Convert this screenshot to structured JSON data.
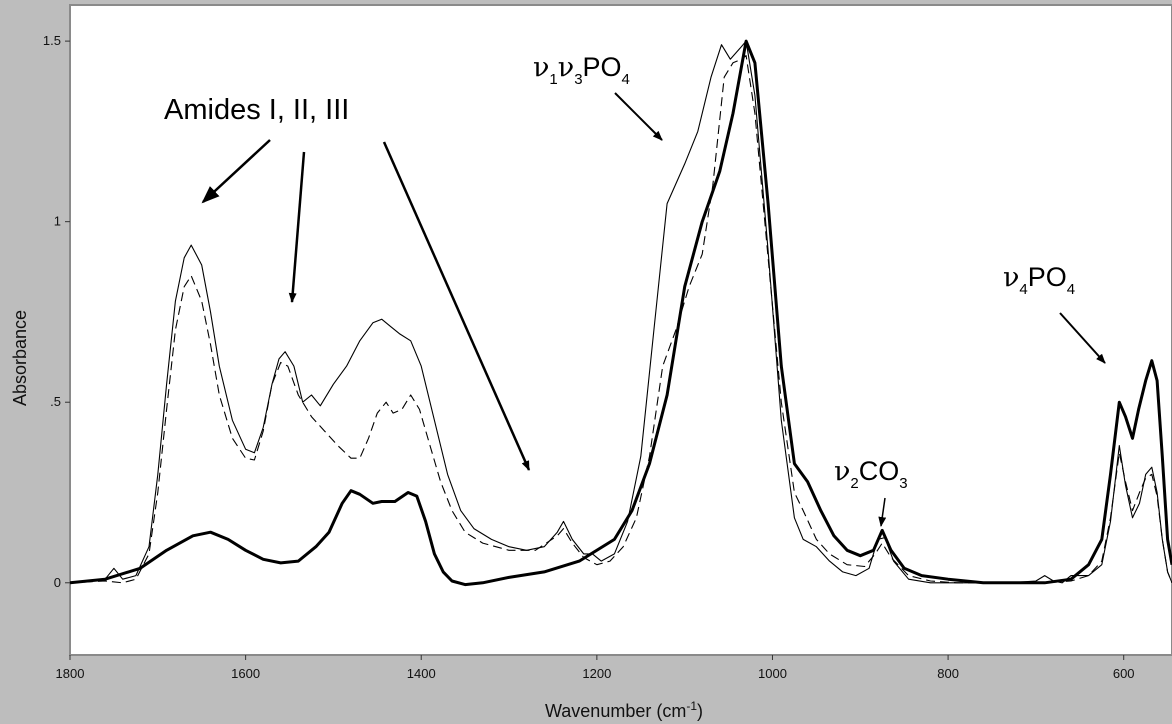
{
  "chart_data": {
    "type": "line",
    "title": "",
    "xlabel": "Wavenumber (cm",
    "xlabel_sup": "-1",
    "xlabel_end": ")",
    "ylabel": "Absorbance",
    "xlim": [
      1800,
      545
    ],
    "ylim": [
      -0.2,
      1.6
    ],
    "x_reversed": true,
    "grid": false,
    "x_ticks": [
      1800,
      1600,
      1400,
      1200,
      1000,
      800,
      600
    ],
    "x_tick_labels": [
      "1800",
      "1600",
      "1400",
      "1200",
      "1000",
      "800",
      "600"
    ],
    "y_ticks": [
      0,
      0.5,
      1,
      1.5
    ],
    "y_tick_labels": [
      "0",
      ".5",
      "1",
      "1.5"
    ],
    "series": [
      {
        "style": "thick",
        "points": [
          [
            1800,
            0
          ],
          [
            1760,
            0.01
          ],
          [
            1720,
            0.04
          ],
          [
            1690,
            0.09
          ],
          [
            1660,
            0.13
          ],
          [
            1640,
            0.14
          ],
          [
            1620,
            0.12
          ],
          [
            1600,
            0.09
          ],
          [
            1580,
            0.065
          ],
          [
            1560,
            0.055
          ],
          [
            1540,
            0.06
          ],
          [
            1520,
            0.1
          ],
          [
            1505,
            0.14
          ],
          [
            1490,
            0.22
          ],
          [
            1480,
            0.255
          ],
          [
            1470,
            0.245
          ],
          [
            1455,
            0.22
          ],
          [
            1445,
            0.225
          ],
          [
            1430,
            0.225
          ],
          [
            1415,
            0.25
          ],
          [
            1405,
            0.24
          ],
          [
            1395,
            0.17
          ],
          [
            1385,
            0.08
          ],
          [
            1375,
            0.03
          ],
          [
            1365,
            0.005
          ],
          [
            1350,
            -0.005
          ],
          [
            1330,
            0.0
          ],
          [
            1300,
            0.015
          ],
          [
            1260,
            0.03
          ],
          [
            1220,
            0.06
          ],
          [
            1180,
            0.12
          ],
          [
            1160,
            0.2
          ],
          [
            1140,
            0.33
          ],
          [
            1120,
            0.52
          ],
          [
            1100,
            0.82
          ],
          [
            1080,
            1.0
          ],
          [
            1060,
            1.14
          ],
          [
            1045,
            1.3
          ],
          [
            1030,
            1.5
          ],
          [
            1020,
            1.44
          ],
          [
            1005,
            1.05
          ],
          [
            990,
            0.6
          ],
          [
            975,
            0.33
          ],
          [
            960,
            0.28
          ],
          [
            945,
            0.2
          ],
          [
            930,
            0.13
          ],
          [
            915,
            0.09
          ],
          [
            900,
            0.075
          ],
          [
            885,
            0.09
          ],
          [
            875,
            0.145
          ],
          [
            865,
            0.09
          ],
          [
            850,
            0.04
          ],
          [
            830,
            0.02
          ],
          [
            800,
            0.01
          ],
          [
            760,
            0.0
          ],
          [
            720,
            0.0
          ],
          [
            690,
            0.0
          ],
          [
            660,
            0.01
          ],
          [
            640,
            0.05
          ],
          [
            625,
            0.12
          ],
          [
            615,
            0.3
          ],
          [
            605,
            0.5
          ],
          [
            598,
            0.46
          ],
          [
            590,
            0.4
          ],
          [
            583,
            0.48
          ],
          [
            575,
            0.56
          ],
          [
            568,
            0.615
          ],
          [
            562,
            0.56
          ],
          [
            556,
            0.35
          ],
          [
            550,
            0.12
          ],
          [
            545,
            0.05
          ]
        ]
      },
      {
        "style": "thin",
        "points": [
          [
            1800,
            0
          ],
          [
            1760,
            0.01
          ],
          [
            1750,
            0.04
          ],
          [
            1740,
            0.01
          ],
          [
            1725,
            0.02
          ],
          [
            1710,
            0.1
          ],
          [
            1700,
            0.3
          ],
          [
            1690,
            0.55
          ],
          [
            1680,
            0.78
          ],
          [
            1670,
            0.9
          ],
          [
            1662,
            0.935
          ],
          [
            1650,
            0.88
          ],
          [
            1640,
            0.75
          ],
          [
            1630,
            0.6
          ],
          [
            1615,
            0.45
          ],
          [
            1600,
            0.37
          ],
          [
            1590,
            0.36
          ],
          [
            1580,
            0.43
          ],
          [
            1570,
            0.55
          ],
          [
            1562,
            0.62
          ],
          [
            1555,
            0.64
          ],
          [
            1545,
            0.6
          ],
          [
            1535,
            0.5
          ],
          [
            1525,
            0.52
          ],
          [
            1515,
            0.49
          ],
          [
            1500,
            0.55
          ],
          [
            1485,
            0.6
          ],
          [
            1470,
            0.67
          ],
          [
            1455,
            0.72
          ],
          [
            1445,
            0.73
          ],
          [
            1435,
            0.71
          ],
          [
            1425,
            0.69
          ],
          [
            1412,
            0.67
          ],
          [
            1400,
            0.6
          ],
          [
            1385,
            0.45
          ],
          [
            1370,
            0.3
          ],
          [
            1355,
            0.2
          ],
          [
            1340,
            0.15
          ],
          [
            1320,
            0.12
          ],
          [
            1300,
            0.1
          ],
          [
            1280,
            0.09
          ],
          [
            1260,
            0.1
          ],
          [
            1245,
            0.14
          ],
          [
            1238,
            0.17
          ],
          [
            1228,
            0.12
          ],
          [
            1215,
            0.08
          ],
          [
            1205,
            0.08
          ],
          [
            1195,
            0.06
          ],
          [
            1180,
            0.08
          ],
          [
            1165,
            0.17
          ],
          [
            1150,
            0.35
          ],
          [
            1135,
            0.7
          ],
          [
            1120,
            1.05
          ],
          [
            1100,
            1.16
          ],
          [
            1085,
            1.25
          ],
          [
            1070,
            1.4
          ],
          [
            1058,
            1.49
          ],
          [
            1048,
            1.45
          ],
          [
            1037,
            1.48
          ],
          [
            1030,
            1.5
          ],
          [
            1020,
            1.35
          ],
          [
            1005,
            0.92
          ],
          [
            990,
            0.45
          ],
          [
            975,
            0.18
          ],
          [
            965,
            0.12
          ],
          [
            950,
            0.1
          ],
          [
            935,
            0.06
          ],
          [
            920,
            0.03
          ],
          [
            905,
            0.02
          ],
          [
            890,
            0.04
          ],
          [
            880,
            0.12
          ],
          [
            872,
            0.125
          ],
          [
            862,
            0.06
          ],
          [
            845,
            0.01
          ],
          [
            820,
            0.0
          ],
          [
            790,
            0.0
          ],
          [
            760,
            0.0
          ],
          [
            730,
            0.0
          ],
          [
            700,
            0.005
          ],
          [
            690,
            0.02
          ],
          [
            680,
            0.005
          ],
          [
            670,
            0.0
          ],
          [
            660,
            0.02
          ],
          [
            640,
            0.02
          ],
          [
            625,
            0.05
          ],
          [
            615,
            0.17
          ],
          [
            605,
            0.38
          ],
          [
            598,
            0.27
          ],
          [
            590,
            0.18
          ],
          [
            582,
            0.22
          ],
          [
            575,
            0.3
          ],
          [
            568,
            0.32
          ],
          [
            562,
            0.25
          ],
          [
            556,
            0.12
          ],
          [
            550,
            0.03
          ],
          [
            545,
            0.0
          ]
        ]
      },
      {
        "style": "dashed",
        "points": [
          [
            1800,
            0
          ],
          [
            1760,
            0.005
          ],
          [
            1740,
            0.0
          ],
          [
            1725,
            0.01
          ],
          [
            1710,
            0.08
          ],
          [
            1700,
            0.25
          ],
          [
            1690,
            0.48
          ],
          [
            1680,
            0.7
          ],
          [
            1670,
            0.82
          ],
          [
            1662,
            0.85
          ],
          [
            1650,
            0.78
          ],
          [
            1640,
            0.66
          ],
          [
            1630,
            0.52
          ],
          [
            1615,
            0.4
          ],
          [
            1600,
            0.345
          ],
          [
            1590,
            0.34
          ],
          [
            1580,
            0.42
          ],
          [
            1570,
            0.55
          ],
          [
            1560,
            0.61
          ],
          [
            1552,
            0.6
          ],
          [
            1540,
            0.52
          ],
          [
            1525,
            0.46
          ],
          [
            1510,
            0.42
          ],
          [
            1495,
            0.38
          ],
          [
            1480,
            0.345
          ],
          [
            1470,
            0.345
          ],
          [
            1460,
            0.4
          ],
          [
            1450,
            0.47
          ],
          [
            1440,
            0.5
          ],
          [
            1432,
            0.47
          ],
          [
            1422,
            0.48
          ],
          [
            1412,
            0.52
          ],
          [
            1402,
            0.48
          ],
          [
            1390,
            0.38
          ],
          [
            1378,
            0.28
          ],
          [
            1365,
            0.2
          ],
          [
            1350,
            0.14
          ],
          [
            1330,
            0.11
          ],
          [
            1300,
            0.09
          ],
          [
            1270,
            0.09
          ],
          [
            1245,
            0.13
          ],
          [
            1238,
            0.15
          ],
          [
            1228,
            0.11
          ],
          [
            1215,
            0.07
          ],
          [
            1200,
            0.05
          ],
          [
            1185,
            0.06
          ],
          [
            1170,
            0.1
          ],
          [
            1155,
            0.18
          ],
          [
            1140,
            0.35
          ],
          [
            1125,
            0.6
          ],
          [
            1110,
            0.7
          ],
          [
            1095,
            0.82
          ],
          [
            1080,
            0.91
          ],
          [
            1068,
            1.1
          ],
          [
            1055,
            1.4
          ],
          [
            1045,
            1.44
          ],
          [
            1035,
            1.45
          ],
          [
            1030,
            1.46
          ],
          [
            1020,
            1.3
          ],
          [
            1005,
            0.9
          ],
          [
            990,
            0.5
          ],
          [
            975,
            0.25
          ],
          [
            965,
            0.2
          ],
          [
            950,
            0.12
          ],
          [
            935,
            0.08
          ],
          [
            915,
            0.05
          ],
          [
            895,
            0.045
          ],
          [
            883,
            0.08
          ],
          [
            875,
            0.11
          ],
          [
            865,
            0.07
          ],
          [
            845,
            0.02
          ],
          [
            820,
            0.005
          ],
          [
            790,
            0.0
          ],
          [
            760,
            0.0
          ],
          [
            720,
            0.0
          ],
          [
            690,
            0.0
          ],
          [
            660,
            0.005
          ],
          [
            640,
            0.02
          ],
          [
            625,
            0.06
          ],
          [
            615,
            0.18
          ],
          [
            605,
            0.36
          ],
          [
            598,
            0.28
          ],
          [
            590,
            0.2
          ],
          [
            582,
            0.25
          ],
          [
            575,
            0.29
          ],
          [
            568,
            0.3
          ],
          [
            562,
            0.24
          ],
          [
            556,
            0.12
          ],
          [
            550,
            0.03
          ],
          [
            545,
            0.0
          ]
        ]
      }
    ],
    "annotations": {
      "amides": "Amides I, II, III",
      "v1v3_nu1": "ν",
      "v1v3_sub1": "1",
      "v1v3_nu3": "ν",
      "v1v3_sub3": "3",
      "v1v3_po": "PO",
      "v1v3_sub4": "4",
      "v2_nu": "ν",
      "v2_sub": "2",
      "v2_co": "CO",
      "v2_sub3": "3",
      "v4_nu": "ν",
      "v4_sub": "4",
      "v4_po": "PO",
      "v4_sub4": "4"
    },
    "colors": {
      "background": "#bdbdbd",
      "plot_area": "#ffffff",
      "lines": "#000000"
    }
  }
}
